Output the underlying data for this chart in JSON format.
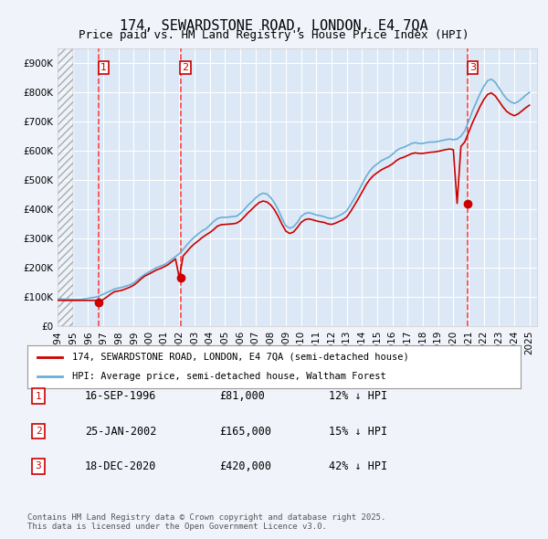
{
  "title": "174, SEWARDSTONE ROAD, LONDON, E4 7QA",
  "subtitle": "Price paid vs. HM Land Registry's House Price Index (HPI)",
  "ylabel": "",
  "xlim": [
    1994.0,
    2025.5
  ],
  "ylim": [
    0,
    950000
  ],
  "yticks": [
    0,
    100000,
    200000,
    300000,
    400000,
    500000,
    600000,
    700000,
    800000,
    900000
  ],
  "ytick_labels": [
    "£0",
    "£100K",
    "£200K",
    "£300K",
    "£400K",
    "£500K",
    "£600K",
    "£700K",
    "£800K",
    "£900K"
  ],
  "bg_color": "#f0f4fa",
  "plot_bg_color": "#dce8f5",
  "grid_color": "#ffffff",
  "hpi_color": "#6baed6",
  "price_color": "#cc0000",
  "transaction_color": "#cc0000",
  "vline_color": "#ff4444",
  "transactions": [
    {
      "year": 1996.71,
      "price": 81000,
      "label": "1",
      "pct": "12%"
    },
    {
      "year": 2002.07,
      "price": 165000,
      "label": "2",
      "pct": "15%"
    },
    {
      "year": 2020.96,
      "price": 420000,
      "label": "3",
      "pct": "42%"
    }
  ],
  "legend_items": [
    {
      "label": "174, SEWARDSTONE ROAD, LONDON, E4 7QA (semi-detached house)",
      "color": "#cc0000"
    },
    {
      "label": "HPI: Average price, semi-detached house, Waltham Forest",
      "color": "#6baed6"
    }
  ],
  "table_rows": [
    {
      "num": "1",
      "date": "16-SEP-1996",
      "price": "£81,000",
      "pct": "12% ↓ HPI"
    },
    {
      "num": "2",
      "date": "25-JAN-2002",
      "price": "£165,000",
      "pct": "15% ↓ HPI"
    },
    {
      "num": "3",
      "date": "18-DEC-2020",
      "price": "£420,000",
      "pct": "42% ↓ HPI"
    }
  ],
  "footer": "Contains HM Land Registry data © Crown copyright and database right 2025.\nThis data is licensed under the Open Government Licence v3.0.",
  "hpi_data_x": [
    1994.0,
    1994.25,
    1994.5,
    1994.75,
    1995.0,
    1995.25,
    1995.5,
    1995.75,
    1996.0,
    1996.25,
    1996.5,
    1996.75,
    1997.0,
    1997.25,
    1997.5,
    1997.75,
    1998.0,
    1998.25,
    1998.5,
    1998.75,
    1999.0,
    1999.25,
    1999.5,
    1999.75,
    2000.0,
    2000.25,
    2000.5,
    2000.75,
    2001.0,
    2001.25,
    2001.5,
    2001.75,
    2002.0,
    2002.25,
    2002.5,
    2002.75,
    2003.0,
    2003.25,
    2003.5,
    2003.75,
    2004.0,
    2004.25,
    2004.5,
    2004.75,
    2005.0,
    2005.25,
    2005.5,
    2005.75,
    2006.0,
    2006.25,
    2006.5,
    2006.75,
    2007.0,
    2007.25,
    2007.5,
    2007.75,
    2008.0,
    2008.25,
    2008.5,
    2008.75,
    2009.0,
    2009.25,
    2009.5,
    2009.75,
    2010.0,
    2010.25,
    2010.5,
    2010.75,
    2011.0,
    2011.25,
    2011.5,
    2011.75,
    2012.0,
    2012.25,
    2012.5,
    2012.75,
    2013.0,
    2013.25,
    2013.5,
    2013.75,
    2014.0,
    2014.25,
    2014.5,
    2014.75,
    2015.0,
    2015.25,
    2015.5,
    2015.75,
    2016.0,
    2016.25,
    2016.5,
    2016.75,
    2017.0,
    2017.25,
    2017.5,
    2017.75,
    2018.0,
    2018.25,
    2018.5,
    2018.75,
    2019.0,
    2019.25,
    2019.5,
    2019.75,
    2020.0,
    2020.25,
    2020.5,
    2020.75,
    2021.0,
    2021.25,
    2021.5,
    2021.75,
    2022.0,
    2022.25,
    2022.5,
    2022.75,
    2023.0,
    2023.25,
    2023.5,
    2023.75,
    2024.0,
    2024.25,
    2024.5,
    2024.75,
    2025.0
  ],
  "hpi_data_y": [
    93000,
    93000,
    92000,
    92000,
    91000,
    91000,
    91000,
    93000,
    95000,
    97000,
    99000,
    103000,
    109000,
    115000,
    121000,
    127000,
    130000,
    133000,
    137000,
    141000,
    148000,
    158000,
    168000,
    178000,
    185000,
    193000,
    200000,
    205000,
    210000,
    218000,
    228000,
    238000,
    248000,
    262000,
    278000,
    293000,
    305000,
    316000,
    326000,
    333000,
    345000,
    358000,
    368000,
    372000,
    372000,
    373000,
    375000,
    376000,
    385000,
    398000,
    413000,
    425000,
    438000,
    449000,
    455000,
    452000,
    440000,
    422000,
    398000,
    368000,
    343000,
    335000,
    340000,
    355000,
    375000,
    385000,
    388000,
    385000,
    380000,
    378000,
    375000,
    370000,
    368000,
    372000,
    378000,
    385000,
    395000,
    415000,
    437000,
    460000,
    485000,
    510000,
    530000,
    545000,
    555000,
    565000,
    572000,
    578000,
    588000,
    600000,
    608000,
    612000,
    618000,
    625000,
    628000,
    625000,
    625000,
    628000,
    630000,
    630000,
    632000,
    635000,
    638000,
    640000,
    638000,
    640000,
    650000,
    668000,
    700000,
    735000,
    765000,
    795000,
    820000,
    840000,
    845000,
    835000,
    815000,
    795000,
    778000,
    768000,
    762000,
    768000,
    778000,
    790000,
    800000
  ],
  "price_data_x": [
    1994.0,
    1994.25,
    1994.5,
    1994.75,
    1995.0,
    1995.25,
    1995.5,
    1995.75,
    1996.0,
    1996.25,
    1996.5,
    1996.75,
    1997.0,
    1997.25,
    1997.5,
    1997.75,
    1998.0,
    1998.25,
    1998.5,
    1998.75,
    1999.0,
    1999.25,
    1999.5,
    1999.75,
    2000.0,
    2000.25,
    2000.5,
    2000.75,
    2001.0,
    2001.25,
    2001.5,
    2001.75,
    2002.0,
    2002.25,
    2002.5,
    2002.75,
    2003.0,
    2003.25,
    2003.5,
    2003.75,
    2004.0,
    2004.25,
    2004.5,
    2004.75,
    2005.0,
    2005.25,
    2005.5,
    2005.75,
    2006.0,
    2006.25,
    2006.5,
    2006.75,
    2007.0,
    2007.25,
    2007.5,
    2007.75,
    2008.0,
    2008.25,
    2008.5,
    2008.75,
    2009.0,
    2009.25,
    2009.5,
    2009.75,
    2010.0,
    2010.25,
    2010.5,
    2010.75,
    2011.0,
    2011.25,
    2011.5,
    2011.75,
    2012.0,
    2012.25,
    2012.5,
    2012.75,
    2013.0,
    2013.25,
    2013.5,
    2013.75,
    2014.0,
    2014.25,
    2014.5,
    2014.75,
    2015.0,
    2015.25,
    2015.5,
    2015.75,
    2016.0,
    2016.25,
    2016.5,
    2016.75,
    2017.0,
    2017.25,
    2017.5,
    2017.75,
    2018.0,
    2018.25,
    2018.5,
    2018.75,
    2019.0,
    2019.25,
    2019.5,
    2019.75,
    2020.0,
    2020.25,
    2020.5,
    2020.75,
    2021.0,
    2021.25,
    2021.5,
    2021.75,
    2022.0,
    2022.25,
    2022.5,
    2022.75,
    2023.0,
    2023.25,
    2023.5,
    2023.75,
    2024.0,
    2024.25,
    2024.5,
    2024.75,
    2025.0
  ],
  "price_data_y": [
    88000,
    88000,
    88000,
    88000,
    88000,
    88000,
    88000,
    88000,
    88000,
    88000,
    88000,
    81000,
    91000,
    100000,
    110000,
    118000,
    120000,
    123000,
    128000,
    133000,
    140000,
    150000,
    162000,
    172000,
    178000,
    185000,
    192000,
    197000,
    203000,
    210000,
    220000,
    230000,
    165000,
    240000,
    255000,
    270000,
    282000,
    292000,
    303000,
    312000,
    320000,
    330000,
    342000,
    347000,
    348000,
    349000,
    350000,
    352000,
    360000,
    373000,
    387000,
    399000,
    412000,
    423000,
    428000,
    425000,
    415000,
    398000,
    375000,
    348000,
    325000,
    317000,
    322000,
    337000,
    355000,
    364000,
    367000,
    364000,
    360000,
    357000,
    355000,
    350000,
    348000,
    352000,
    358000,
    364000,
    373000,
    392000,
    413000,
    435000,
    458000,
    482000,
    501000,
    515000,
    525000,
    534000,
    541000,
    547000,
    555000,
    566000,
    574000,
    578000,
    584000,
    590000,
    593000,
    591000,
    591000,
    593000,
    595000,
    596000,
    598000,
    601000,
    604000,
    606000,
    604000,
    420000,
    615000,
    630000,
    662000,
    695000,
    723000,
    751000,
    775000,
    793000,
    798000,
    788000,
    770000,
    751000,
    735000,
    726000,
    720000,
    726000,
    736000,
    747000,
    756000
  ]
}
